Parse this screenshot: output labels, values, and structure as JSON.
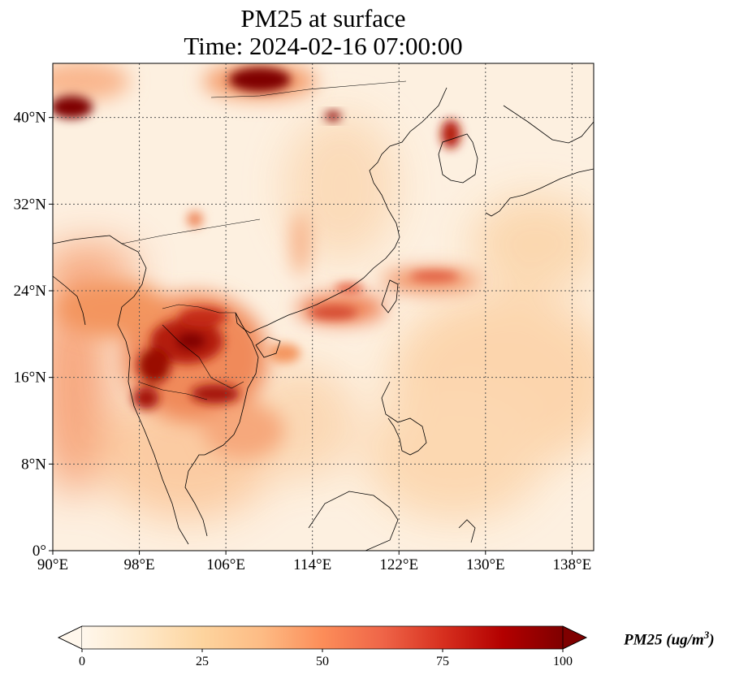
{
  "title": {
    "line1": "PM25 at surface",
    "line2": "Time: 2024-02-16 07:00:00"
  },
  "map": {
    "extent_lon": [
      90,
      140
    ],
    "extent_lat": [
      0,
      45
    ],
    "lon_ticks": [
      {
        "value": 90,
        "label": "90°E"
      },
      {
        "value": 98,
        "label": "98°E"
      },
      {
        "value": 106,
        "label": "106°E"
      },
      {
        "value": 114,
        "label": "114°E"
      },
      {
        "value": 122,
        "label": "122°E"
      },
      {
        "value": 130,
        "label": "130°E"
      },
      {
        "value": 138,
        "label": "138°E"
      }
    ],
    "lat_ticks": [
      {
        "value": 0,
        "label": "0°"
      },
      {
        "value": 8,
        "label": "8°N"
      },
      {
        "value": 16,
        "label": "16°N"
      },
      {
        "value": 24,
        "label": "24°N"
      },
      {
        "value": 32,
        "label": "32°N"
      },
      {
        "value": 40,
        "label": "40°N"
      }
    ],
    "gridlines": true,
    "coastlines": true,
    "borders": true
  },
  "colorbar": {
    "label_text": "PM25 (ug/m",
    "label_sup": "3",
    "label_end": ")",
    "ticks": [
      {
        "value": 0,
        "label": "0"
      },
      {
        "value": 25,
        "label": "25"
      },
      {
        "value": 50,
        "label": "50"
      },
      {
        "value": 75,
        "label": "75"
      },
      {
        "value": 100,
        "label": "100"
      }
    ],
    "range": [
      0,
      100
    ],
    "extend": "both",
    "colormap": "OrRd",
    "colors": [
      "#fff7ec",
      "#fee8c8",
      "#fdd49e",
      "#fdbb84",
      "#fc8d59",
      "#ef6548",
      "#d7301f",
      "#b30000",
      "#7f0000"
    ]
  }
}
